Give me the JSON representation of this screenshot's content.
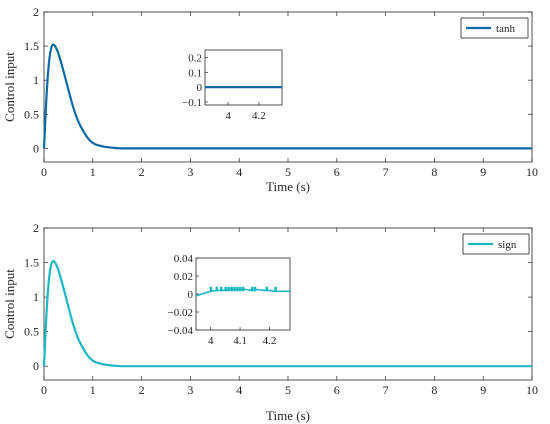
{
  "chart_data": [
    {
      "type": "line",
      "xlabel": "Time (s)",
      "ylabel": "Control input",
      "xlim": [
        0,
        10
      ],
      "ylim": [
        -0.2,
        2
      ],
      "xticks": [
        "0",
        "1",
        "2",
        "3",
        "4",
        "5",
        "6",
        "7",
        "8",
        "9",
        "10"
      ],
      "yticks": [
        "0",
        "0.5",
        "1",
        "1.5",
        "2"
      ],
      "legend_position": "top-right",
      "grid": false,
      "series": [
        {
          "name": "tanh",
          "color": "#0a6aa8",
          "x": [
            0,
            0.05,
            0.1,
            0.15,
            0.2,
            0.25,
            0.3,
            0.4,
            0.5,
            0.6,
            0.7,
            0.8,
            0.9,
            1.0,
            1.2,
            1.4,
            1.6,
            2.0,
            3.0,
            4.0,
            5.0,
            6.0,
            7.0,
            8.0,
            9.0,
            10.0
          ],
          "y": [
            0,
            0.75,
            1.25,
            1.48,
            1.52,
            1.47,
            1.38,
            1.13,
            0.86,
            0.6,
            0.4,
            0.26,
            0.15,
            0.08,
            0.03,
            0.01,
            0.0,
            0.0,
            0.0,
            0.0,
            0.0,
            0.0,
            0.0,
            0.0,
            0.0,
            0.0
          ]
        }
      ],
      "inset": {
        "xlim": [
          3.85,
          4.35
        ],
        "ylim": [
          -0.12,
          0.25
        ],
        "xticks": [
          "4",
          "4.2"
        ],
        "yticks": [
          "0.2",
          "0.1",
          "0",
          "-0.1"
        ],
        "x": [
          3.85,
          4.35
        ],
        "y": [
          0,
          0
        ]
      }
    },
    {
      "type": "line",
      "xlabel": "Time (s)",
      "ylabel": "Control input",
      "xlim": [
        0,
        10
      ],
      "ylim": [
        -0.2,
        2
      ],
      "xticks": [
        "0",
        "1",
        "2",
        "3",
        "4",
        "5",
        "6",
        "7",
        "8",
        "9",
        "10"
      ],
      "yticks": [
        "0",
        "0.5",
        "1",
        "1.5",
        "2"
      ],
      "legend_position": "top-right",
      "grid": false,
      "series": [
        {
          "name": "sign",
          "color": "#1bb8c2",
          "x": [
            0,
            0.05,
            0.1,
            0.15,
            0.2,
            0.25,
            0.3,
            0.4,
            0.5,
            0.6,
            0.7,
            0.8,
            0.9,
            1.0,
            1.2,
            1.4,
            1.6,
            2.0,
            3.0,
            4.0,
            5.0,
            6.0,
            7.0,
            8.0,
            9.0,
            10.0
          ],
          "y": [
            0,
            0.75,
            1.25,
            1.48,
            1.52,
            1.47,
            1.38,
            1.13,
            0.86,
            0.6,
            0.4,
            0.26,
            0.15,
            0.08,
            0.03,
            0.01,
            0.0,
            0.0,
            0.0,
            0.0,
            0.0,
            0.0,
            0.0,
            0.0,
            0.0,
            0.0
          ]
        }
      ],
      "inset": {
        "xlim": [
          3.95,
          4.27
        ],
        "ylim": [
          -0.04,
          0.04
        ],
        "xticks": [
          "4",
          "4.1",
          "4.2"
        ],
        "yticks": [
          "0.04",
          "0.02",
          "0",
          "-0.02",
          "-0.04"
        ],
        "x": [
          3.95,
          3.97,
          3.98,
          3.99,
          4.0,
          4.02,
          4.04,
          4.06,
          4.08,
          4.1,
          4.12,
          4.14,
          4.16,
          4.18,
          4.2,
          4.22,
          4.24,
          4.27
        ],
        "y": [
          -0.002,
          0.0,
          0.001,
          0.002,
          0.003,
          0.004,
          0.004,
          0.005,
          0.005,
          0.005,
          0.005,
          0.004,
          0.005,
          0.004,
          0.004,
          0.003,
          0.003,
          0.003
        ]
      }
    }
  ]
}
